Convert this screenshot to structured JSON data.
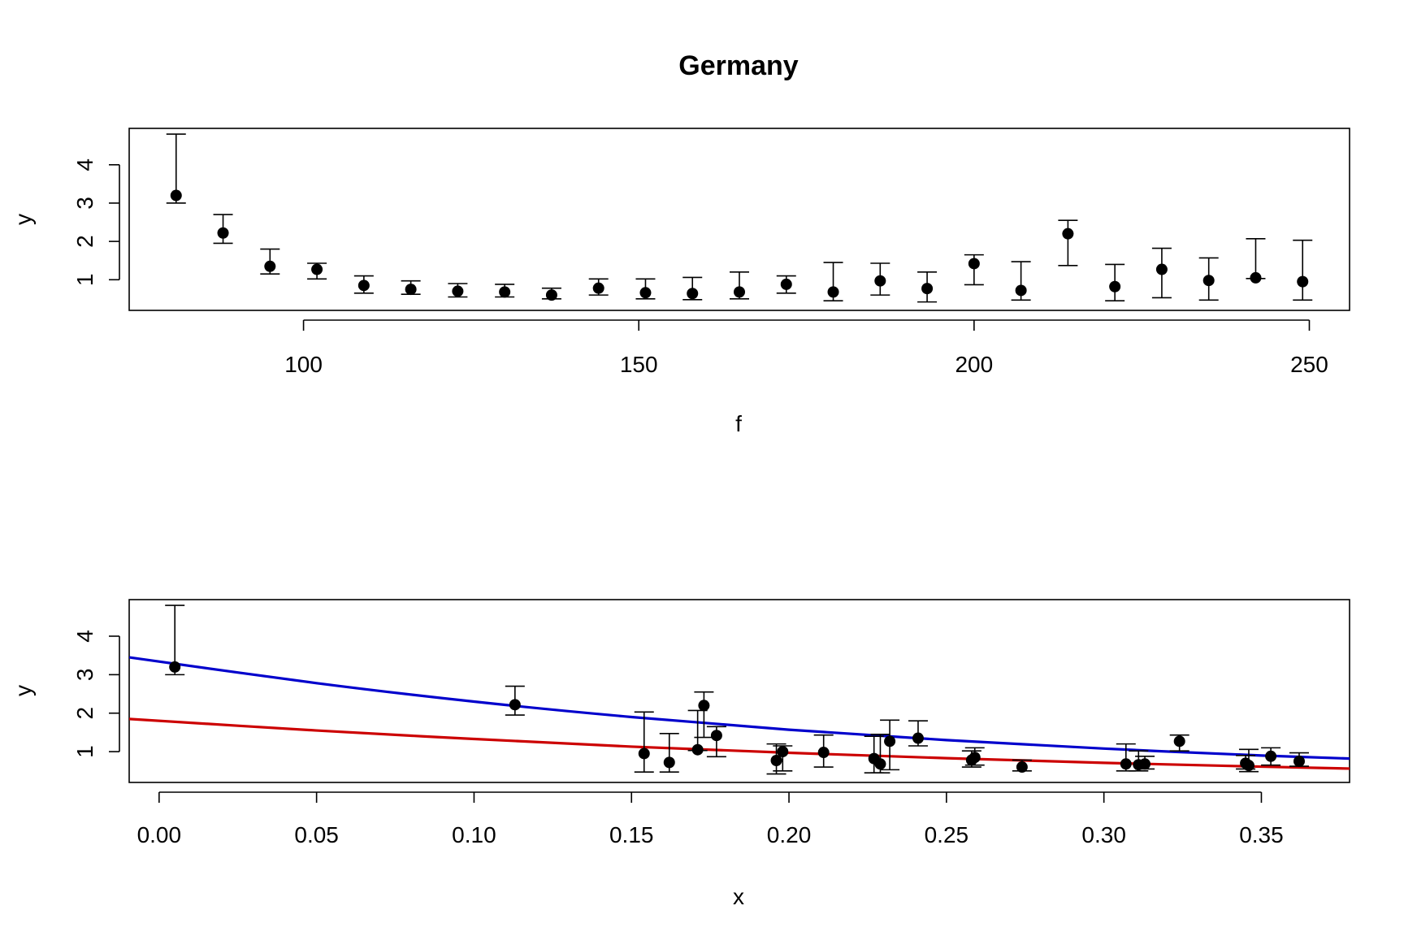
{
  "colors": {
    "blue_curve": "#0000cc",
    "red_curve": "#cc0000",
    "points": "#000000"
  },
  "chart_data": [
    {
      "type": "scatter",
      "title": "Germany",
      "xlabel": "f",
      "ylabel": "y",
      "xlim": [
        74,
        256
      ],
      "ylim": [
        0.2,
        4.95
      ],
      "xticks": [
        100,
        150,
        200,
        250
      ],
      "yticks": [
        1,
        2,
        3,
        4
      ],
      "points": [
        {
          "x": 81,
          "y": 3.2,
          "lo": 3.0,
          "hi": 4.8
        },
        {
          "x": 88,
          "y": 2.22,
          "lo": 1.95,
          "hi": 2.7
        },
        {
          "x": 95,
          "y": 1.35,
          "lo": 1.15,
          "hi": 1.8
        },
        {
          "x": 102,
          "y": 1.27,
          "lo": 1.02,
          "hi": 1.43
        },
        {
          "x": 109,
          "y": 0.85,
          "lo": 0.65,
          "hi": 1.1
        },
        {
          "x": 116,
          "y": 0.75,
          "lo": 0.62,
          "hi": 0.97
        },
        {
          "x": 123,
          "y": 0.7,
          "lo": 0.55,
          "hi": 0.9
        },
        {
          "x": 130,
          "y": 0.68,
          "lo": 0.55,
          "hi": 0.88
        },
        {
          "x": 137,
          "y": 0.6,
          "lo": 0.5,
          "hi": 0.78
        },
        {
          "x": 144,
          "y": 0.78,
          "lo": 0.6,
          "hi": 1.02
        },
        {
          "x": 151,
          "y": 0.66,
          "lo": 0.5,
          "hi": 1.02
        },
        {
          "x": 158,
          "y": 0.64,
          "lo": 0.48,
          "hi": 1.06
        },
        {
          "x": 165,
          "y": 0.68,
          "lo": 0.5,
          "hi": 1.2
        },
        {
          "x": 172,
          "y": 0.88,
          "lo": 0.65,
          "hi": 1.1
        },
        {
          "x": 179,
          "y": 0.68,
          "lo": 0.45,
          "hi": 1.45
        },
        {
          "x": 186,
          "y": 0.97,
          "lo": 0.6,
          "hi": 1.43
        },
        {
          "x": 193,
          "y": 0.77,
          "lo": 0.42,
          "hi": 1.2
        },
        {
          "x": 200,
          "y": 1.42,
          "lo": 0.87,
          "hi": 1.65
        },
        {
          "x": 207,
          "y": 0.72,
          "lo": 0.47,
          "hi": 1.47
        },
        {
          "x": 214,
          "y": 2.2,
          "lo": 1.37,
          "hi": 2.55
        },
        {
          "x": 221,
          "y": 0.82,
          "lo": 0.45,
          "hi": 1.4
        },
        {
          "x": 228,
          "y": 1.27,
          "lo": 0.53,
          "hi": 1.82
        },
        {
          "x": 235,
          "y": 0.98,
          "lo": 0.47,
          "hi": 1.57
        },
        {
          "x": 242,
          "y": 1.05,
          "lo": 1.03,
          "hi": 2.07
        },
        {
          "x": 249,
          "y": 0.95,
          "lo": 0.47,
          "hi": 2.03
        }
      ]
    },
    {
      "type": "scatter",
      "title": "",
      "xlabel": "x",
      "ylabel": "y",
      "xlim": [
        -0.0095,
        0.378
      ],
      "ylim": [
        0.2,
        4.95
      ],
      "xticks": [
        0.0,
        0.05,
        0.1,
        0.15,
        0.2,
        0.25,
        0.3,
        0.35
      ],
      "xtick_labels": [
        "0.00",
        "0.05",
        "0.10",
        "0.15",
        "0.20",
        "0.25",
        "0.30",
        "0.35"
      ],
      "yticks": [
        1,
        2,
        3,
        4
      ],
      "points": [
        {
          "x": 0.005,
          "y": 3.2,
          "lo": 3.0,
          "hi": 4.8
        },
        {
          "x": 0.113,
          "y": 2.22,
          "lo": 1.95,
          "hi": 2.7
        },
        {
          "x": 0.154,
          "y": 0.95,
          "lo": 0.47,
          "hi": 2.03
        },
        {
          "x": 0.162,
          "y": 0.72,
          "lo": 0.47,
          "hi": 1.47
        },
        {
          "x": 0.171,
          "y": 1.05,
          "lo": 1.03,
          "hi": 2.07
        },
        {
          "x": 0.173,
          "y": 2.2,
          "lo": 1.37,
          "hi": 2.55
        },
        {
          "x": 0.177,
          "y": 1.42,
          "lo": 0.87,
          "hi": 1.65
        },
        {
          "x": 0.196,
          "y": 0.77,
          "lo": 0.42,
          "hi": 1.2
        },
        {
          "x": 0.198,
          "y": 1.0,
          "lo": 0.5,
          "hi": 1.15
        },
        {
          "x": 0.211,
          "y": 0.98,
          "lo": 0.6,
          "hi": 1.43
        },
        {
          "x": 0.227,
          "y": 0.82,
          "lo": 0.45,
          "hi": 1.4
        },
        {
          "x": 0.229,
          "y": 0.68,
          "lo": 0.45,
          "hi": 1.45
        },
        {
          "x": 0.232,
          "y": 1.27,
          "lo": 0.53,
          "hi": 1.82
        },
        {
          "x": 0.241,
          "y": 1.35,
          "lo": 1.15,
          "hi": 1.8
        },
        {
          "x": 0.258,
          "y": 0.78,
          "lo": 0.6,
          "hi": 1.02
        },
        {
          "x": 0.259,
          "y": 0.85,
          "lo": 0.65,
          "hi": 1.1
        },
        {
          "x": 0.274,
          "y": 0.6,
          "lo": 0.5,
          "hi": 0.78
        },
        {
          "x": 0.307,
          "y": 0.68,
          "lo": 0.5,
          "hi": 1.2
        },
        {
          "x": 0.311,
          "y": 0.66,
          "lo": 0.5,
          "hi": 1.02
        },
        {
          "x": 0.313,
          "y": 0.68,
          "lo": 0.55,
          "hi": 0.88
        },
        {
          "x": 0.324,
          "y": 1.27,
          "lo": 1.02,
          "hi": 1.43
        },
        {
          "x": 0.345,
          "y": 0.7,
          "lo": 0.55,
          "hi": 0.9
        },
        {
          "x": 0.346,
          "y": 0.64,
          "lo": 0.48,
          "hi": 1.06
        },
        {
          "x": 0.353,
          "y": 0.88,
          "lo": 0.65,
          "hi": 1.1
        },
        {
          "x": 0.362,
          "y": 0.75,
          "lo": 0.62,
          "hi": 0.97
        }
      ],
      "curves": [
        {
          "name": "blue fit",
          "color": "blue_curve",
          "x": [
            -0.0095,
            0.05,
            0.1,
            0.15,
            0.2,
            0.25,
            0.3,
            0.35,
            0.378
          ],
          "y": [
            3.45,
            2.78,
            2.3,
            1.9,
            1.57,
            1.3,
            1.08,
            0.9,
            0.82
          ]
        },
        {
          "name": "red fit",
          "color": "red_curve",
          "x": [
            -0.0095,
            0.05,
            0.1,
            0.15,
            0.2,
            0.25,
            0.3,
            0.35,
            0.378
          ],
          "y": [
            1.85,
            1.55,
            1.33,
            1.13,
            0.97,
            0.83,
            0.71,
            0.61,
            0.56
          ]
        }
      ]
    }
  ]
}
